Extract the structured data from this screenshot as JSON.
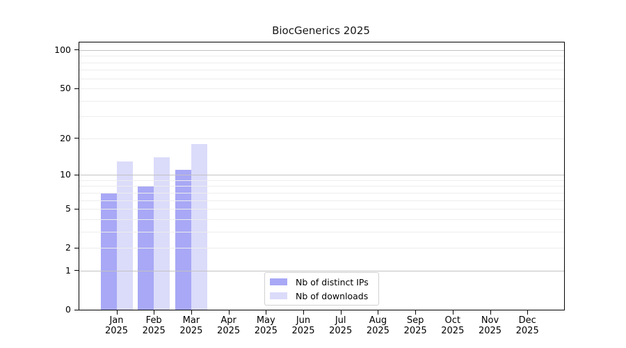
{
  "chart_data": {
    "type": "bar",
    "title": "BiocGenerics 2025",
    "categories": [
      "Jan",
      "Feb",
      "Mar",
      "Apr",
      "May",
      "Jun",
      "Jul",
      "Aug",
      "Sep",
      "Oct",
      "Nov",
      "Dec"
    ],
    "x_sublabel": "2025",
    "series": [
      {
        "name": "Nb of distinct IPs",
        "color": "#a8a8f6",
        "values": [
          7,
          8,
          11,
          0,
          0,
          0,
          0,
          0,
          0,
          0,
          0,
          0
        ]
      },
      {
        "name": "Nb of downloads",
        "color": "#dbdbfa",
        "values": [
          13,
          14,
          18,
          0,
          0,
          0,
          0,
          0,
          0,
          0,
          0,
          0
        ]
      }
    ],
    "y_axis": {
      "scale": "log1p",
      "ticks": [
        0,
        1,
        2,
        5,
        10,
        20,
        50,
        100
      ],
      "max": 115
    },
    "gridlines": {
      "minor": [
        2,
        3,
        4,
        5,
        6,
        7,
        8,
        9,
        20,
        30,
        40,
        50,
        60,
        70,
        80,
        90
      ],
      "major": [
        1,
        10,
        100
      ]
    },
    "legend": {
      "position": "bottom-center"
    },
    "colors": {
      "grid_minor": "#ededed",
      "grid_major": "#c2c2c2",
      "axis": "#000000"
    }
  }
}
